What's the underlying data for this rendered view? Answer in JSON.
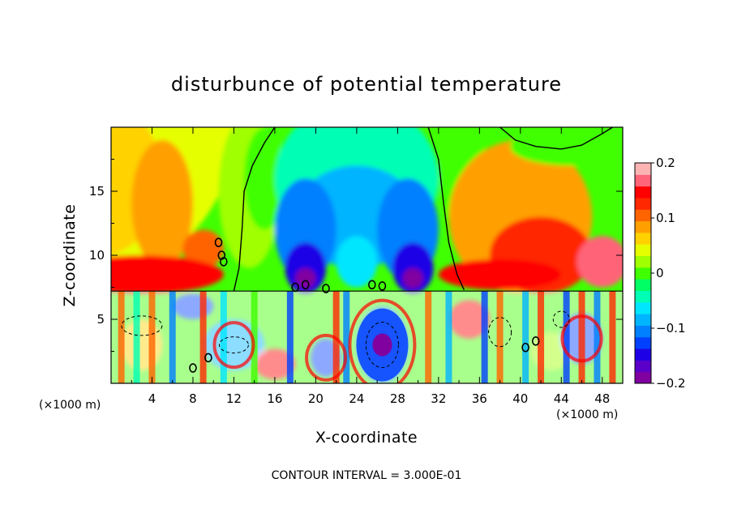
{
  "chart_data": {
    "type": "heatmap",
    "title": "disturbunce of potential temperature",
    "xlabel": "X-coordinate",
    "ylabel": "Z-coordinate",
    "x_unit_left": "(×1000 m)",
    "x_unit_right": "(×1000 m)",
    "footer": "CONTOUR INTERVAL = 3.000E-01",
    "xlim": [
      0,
      50
    ],
    "ylim": [
      0,
      20
    ],
    "x_ticks": [
      4,
      8,
      12,
      16,
      20,
      24,
      28,
      32,
      36,
      40,
      44,
      48
    ],
    "y_ticks": [
      5,
      10,
      15
    ],
    "colorbar": {
      "min": -0.2,
      "max": 0.2,
      "tick_values": [
        0.2,
        0.1,
        0,
        -0.1,
        -0.2
      ],
      "tick_labels": [
        "0.2",
        "0.1",
        "0",
        "−0.1",
        "−0.2"
      ],
      "colors": [
        "#8000a0",
        "#5a00c8",
        "#1e00e6",
        "#0040ff",
        "#0080ff",
        "#00b4ff",
        "#00e6ff",
        "#00ffb4",
        "#00ff64",
        "#40ff00",
        "#a0ff00",
        "#e6ff00",
        "#ffd200",
        "#ffa000",
        "#ff6400",
        "#ff2800",
        "#ff0000",
        "#ff6478",
        "#ffb4b4"
      ]
    },
    "contour_interval": 0.3,
    "features": [
      {
        "name": "warm-upper-left",
        "x": 5,
        "z": 14,
        "value": 0.07
      },
      {
        "name": "cool-upper-center",
        "x": 25,
        "z": 14,
        "value": -0.1
      },
      {
        "name": "cold-core-left",
        "x": 19,
        "z": 9,
        "value": -0.18
      },
      {
        "name": "cold-core-right",
        "x": 29.5,
        "z": 9,
        "value": -0.18
      },
      {
        "name": "warm-upper-right",
        "x": 42,
        "z": 10,
        "value": 0.13
      },
      {
        "name": "green-top-right",
        "x": 45,
        "z": 18,
        "value": 0.0
      },
      {
        "name": "lower-vortex",
        "x": 26.5,
        "z": 3,
        "value": -0.15
      }
    ]
  }
}
